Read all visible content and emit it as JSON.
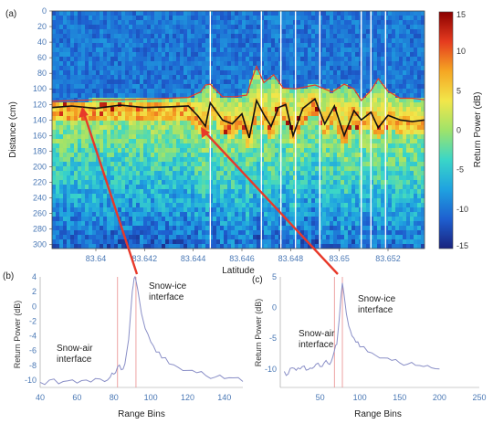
{
  "chart_data": [
    {
      "panel": "(a)",
      "type": "heatmap",
      "xlabel": "Latitude",
      "ylabel": "Distance (cm)",
      "colorbar_label": "Return Power (dB)",
      "colorbar_ticks": [
        "15",
        "10",
        "5",
        "0",
        "-5",
        "-10",
        "-15"
      ],
      "colorbar_range": [
        -15,
        15
      ],
      "colormap": [
        "#1a237e",
        "#1e5fd0",
        "#1fa2e0",
        "#3ad6c8",
        "#9fe36a",
        "#f2e64a",
        "#f5a623",
        "#e53b1f",
        "#8b0000"
      ],
      "x_ticks": [
        "83.64",
        "83.642",
        "83.644",
        "83.646",
        "83.648",
        "83.65",
        "83.652"
      ],
      "x_range": [
        83.6382,
        83.6535
      ],
      "y_ticks": [
        "0",
        "20",
        "40",
        "60",
        "80",
        "100",
        "120",
        "140",
        "160",
        "180",
        "200",
        "220",
        "240",
        "260",
        "280",
        "300"
      ],
      "y_range": [
        0,
        305
      ],
      "gaps_latitude": [
        83.6447,
        83.6468,
        83.6476,
        83.6482,
        83.6492,
        83.6509,
        83.6513,
        83.6519
      ],
      "snow_air_interface_cm": [
        [
          83.6382,
          116
        ],
        [
          83.639,
          115
        ],
        [
          83.64,
          114
        ],
        [
          83.641,
          114
        ],
        [
          83.642,
          113
        ],
        [
          83.643,
          112
        ],
        [
          83.6438,
          111
        ],
        [
          83.6443,
          104
        ],
        [
          83.6445,
          95
        ],
        [
          83.6447,
          94
        ],
        [
          83.6452,
          110
        ],
        [
          83.6457,
          110
        ],
        [
          83.6462,
          108
        ],
        [
          83.6464,
          88
        ],
        [
          83.6466,
          71
        ],
        [
          83.6469,
          92
        ],
        [
          83.6473,
          82
        ],
        [
          83.6477,
          99
        ],
        [
          83.6482,
          100
        ],
        [
          83.649,
          95
        ],
        [
          83.6497,
          104
        ],
        [
          83.6502,
          94
        ],
        [
          83.6506,
          100
        ],
        [
          83.6509,
          115
        ],
        [
          83.6513,
          102
        ],
        [
          83.6516,
          87
        ],
        [
          83.652,
          103
        ],
        [
          83.6525,
          112
        ],
        [
          83.653,
          112
        ],
        [
          83.6535,
          114
        ]
      ],
      "snow_ice_interface_cm": [
        [
          83.6382,
          124
        ],
        [
          83.639,
          122
        ],
        [
          83.64,
          125
        ],
        [
          83.641,
          121
        ],
        [
          83.642,
          124
        ],
        [
          83.643,
          123
        ],
        [
          83.6438,
          122
        ],
        [
          83.6442,
          135
        ],
        [
          83.6445,
          148
        ],
        [
          83.6447,
          118
        ],
        [
          83.6452,
          140
        ],
        [
          83.6456,
          145
        ],
        [
          83.646,
          132
        ],
        [
          83.6463,
          163
        ],
        [
          83.6466,
          115
        ],
        [
          83.6469,
          133
        ],
        [
          83.6472,
          148
        ],
        [
          83.6475,
          124
        ],
        [
          83.6478,
          120
        ],
        [
          83.6481,
          160
        ],
        [
          83.6485,
          125
        ],
        [
          83.649,
          113
        ],
        [
          83.6494,
          145
        ],
        [
          83.6498,
          122
        ],
        [
          83.6502,
          160
        ],
        [
          83.6506,
          128
        ],
        [
          83.6509,
          140
        ],
        [
          83.6513,
          130
        ],
        [
          83.6516,
          150
        ],
        [
          83.652,
          134
        ],
        [
          83.6525,
          140
        ],
        [
          83.653,
          142
        ],
        [
          83.6535,
          140
        ]
      ]
    },
    {
      "panel": "(b)",
      "type": "line",
      "xlabel": "Range Bins",
      "ylabel": "Return Power (dB)",
      "xlim": [
        40,
        150
      ],
      "ylim": [
        -11,
        4
      ],
      "x_ticks": [
        "40",
        "60",
        "80",
        "100",
        "120",
        "140"
      ],
      "y_ticks": [
        "4",
        "2",
        "0",
        "-2",
        "-4",
        "-6",
        "-8",
        "-10"
      ],
      "snow_air_bin": 82,
      "snow_ice_bin": 92,
      "annotations": [
        "Snow-ice",
        "interface",
        "Snow-air",
        "interface"
      ],
      "x": [
        40,
        45,
        50,
        55,
        60,
        65,
        70,
        75,
        78,
        80,
        82,
        84,
        86,
        88,
        90,
        91,
        92,
        93,
        95,
        97,
        100,
        103,
        106,
        110,
        115,
        120,
        125,
        130,
        135,
        140,
        145,
        150
      ],
      "y": [
        -10.3,
        -10.0,
        -10.5,
        -10.1,
        -10.4,
        -10.0,
        -9.8,
        -10.2,
        -9.6,
        -9.2,
        -8.2,
        -8.6,
        -7.8,
        -4.5,
        2.0,
        3.8,
        3.5,
        2.2,
        -1.0,
        -3.0,
        -4.8,
        -6.2,
        -7.0,
        -7.8,
        -8.3,
        -8.7,
        -9.0,
        -9.4,
        -9.6,
        -9.8,
        -9.7,
        -10.2
      ]
    },
    {
      "panel": "(c)",
      "type": "line",
      "xlabel": "Range Bins",
      "ylabel": "Return Power (dB)",
      "xlim": [
        0,
        250
      ],
      "ylim": [
        -13,
        5
      ],
      "x_ticks": [
        "50",
        "100",
        "150",
        "200",
        "250"
      ],
      "y_ticks": [
        "5",
        "0",
        "-5",
        "-10"
      ],
      "snow_air_bin": 68,
      "snow_ice_bin": 78,
      "annotations": [
        "Snow-ice",
        "interface",
        "Snow-air",
        "interface"
      ],
      "x": [
        5,
        10,
        15,
        20,
        25,
        30,
        35,
        40,
        45,
        50,
        55,
        60,
        64,
        68,
        71,
        74,
        76,
        78,
        80,
        83,
        86,
        90,
        95,
        100,
        110,
        120,
        130,
        140,
        150,
        160,
        170,
        180,
        190,
        200
      ],
      "y": [
        -10.4,
        -10.8,
        -9.8,
        -10.2,
        -10.0,
        -9.5,
        -10.1,
        -9.9,
        -9.2,
        -9.6,
        -9.0,
        -9.1,
        -8.8,
        -7.0,
        -6.0,
        -2.0,
        1.5,
        4.0,
        2.2,
        -1.0,
        -3.0,
        -4.6,
        -5.6,
        -6.4,
        -7.2,
        -7.8,
        -8.2,
        -8.6,
        -9.0,
        -9.2,
        -9.4,
        -9.6,
        -9.8,
        -10.0
      ]
    }
  ]
}
